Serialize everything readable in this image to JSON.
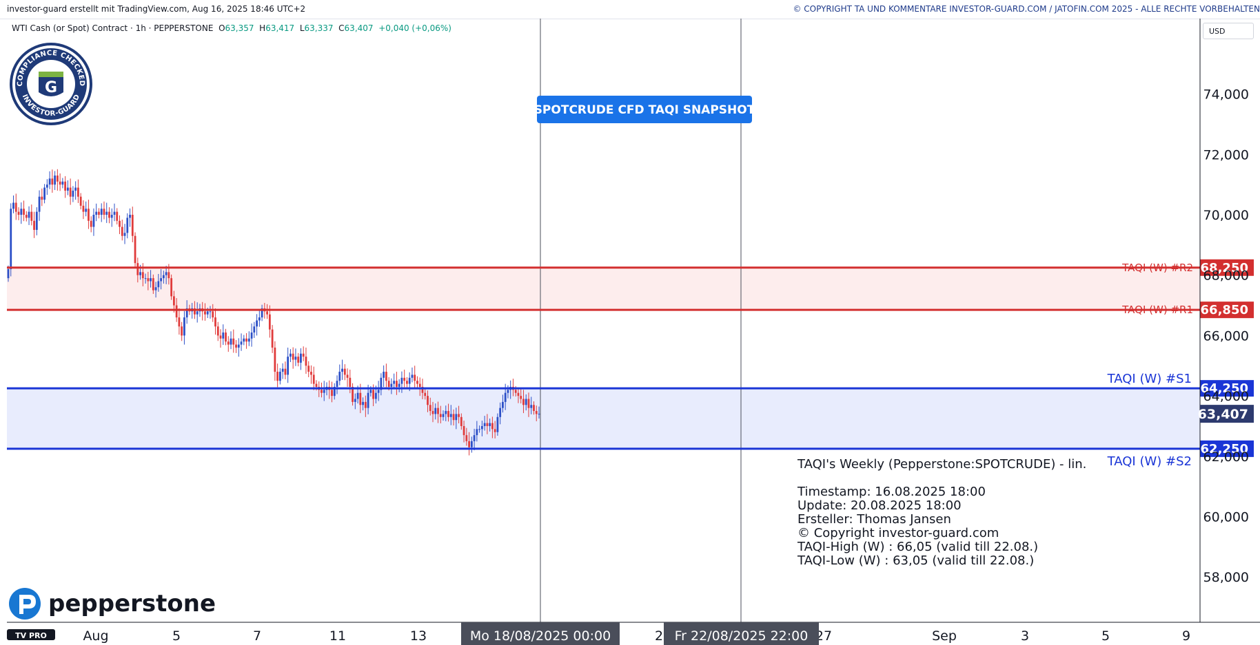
{
  "header": {
    "left_text": "investor-guard erstellt mit TradingView.com, Aug 16, 2025 18:46 UTC+2",
    "right_text": "© COPYRIGHT TA UND KOMMENTARE INVESTOR-GUARD.COM / JATOFIN.COM 2025 - ALLE RECHTE VORBEHALTEN"
  },
  "symbol": {
    "name": "WTI Cash (or Spot) Contract · 1h · PEPPERSTONE",
    "o_label": "O",
    "o_value": "63,357",
    "h_label": "H",
    "h_value": "63,417",
    "l_label": "L",
    "l_value": "63,337",
    "c_label": "C",
    "c_value": "63,407",
    "change": "+0,040 (+0,06%)"
  },
  "currency_button": "USD",
  "badge": {
    "top_text": "COMPLIANCE CHECKED",
    "bottom_text": "INVESTOR-GUARD",
    "letter": "G"
  },
  "snapshot_label": "SPOTCRUDE CFD TAQI SNAPSHOT",
  "info_box": {
    "title": "TAQI's Weekly (Pepperstone:SPOTCRUDE) - lin.",
    "lines": [
      "Timestamp: 16.08.2025 18:00",
      "Update: 20.08.2025 18:00",
      "Ersteller: Thomas Jansen",
      "© Copyright investor-guard.com",
      "TAQI-High (W) : 66,05 (valid till 22.08.)",
      "TAQI-Low (W) : 63,05 (valid till 22.08.)"
    ]
  },
  "logos": {
    "pepperstone": "pepperstone",
    "tradingview": "TV PRO"
  },
  "colors": {
    "resistance": "#d32f2f",
    "support": "#1a35d6",
    "bull": "#2b4fc7",
    "bear": "#e03b3b",
    "last": "#2d3a6e"
  },
  "chart_data": {
    "type": "candlestick",
    "timeframe": "1h",
    "ylim": [
      56.5,
      76.5
    ],
    "y_ticks": [
      "58,000",
      "60,000",
      "62,000",
      "64,000",
      "66,000",
      "68,000",
      "70,000",
      "72,000",
      "74,000"
    ],
    "y_tick_values": [
      58,
      60,
      62,
      64,
      66,
      68,
      70,
      72,
      74
    ],
    "x_ticks": [
      "Aug",
      "5",
      "7",
      "11",
      "13",
      "2",
      "27",
      "Sep",
      "3",
      "5",
      "9"
    ],
    "x_cursor_labels": [
      "Mo 18/08/2025   00:00",
      "Fr 22/08/2025   22:00"
    ],
    "levels": [
      {
        "name": "TAQI (W) #R2",
        "value": 68.25,
        "label": "68,250",
        "kind": "resistance"
      },
      {
        "name": "TAQI (W) #R1",
        "value": 66.85,
        "label": "66,850",
        "kind": "resistance"
      },
      {
        "name": "TAQI (W) #S1",
        "value": 64.25,
        "label": "64,250",
        "kind": "support"
      },
      {
        "name": "TAQI (W) #S2",
        "value": 62.25,
        "label": "62,250",
        "kind": "support"
      }
    ],
    "last_price": {
      "value": 63.407,
      "label": "63,407"
    },
    "series_close": [
      68.2,
      70.2,
      70.4,
      70.1,
      70.0,
      70.2,
      70.0,
      69.9,
      70.1,
      69.8,
      69.5,
      70.1,
      70.6,
      70.5,
      70.9,
      71.0,
      71.2,
      71.0,
      71.3,
      71.1,
      71.0,
      71.1,
      70.8,
      70.9,
      70.6,
      70.8,
      70.9,
      70.6,
      70.3,
      70.1,
      70.2,
      69.8,
      69.6,
      70.0,
      70.1,
      70.0,
      70.2,
      70.0,
      70.1,
      69.9,
      70.0,
      70.1,
      69.8,
      69.6,
      69.3,
      69.4,
      69.9,
      70.0,
      69.3,
      68.4,
      68.0,
      68.1,
      67.9,
      67.9,
      67.8,
      67.9,
      67.5,
      67.6,
      67.8,
      67.9,
      68.0,
      68.1,
      67.9,
      67.3,
      67.0,
      66.6,
      66.3,
      66.0,
      66.6,
      66.9,
      66.8,
      66.9,
      66.7,
      66.8,
      66.9,
      66.8,
      66.7,
      66.8,
      66.8,
      66.6,
      66.3,
      66.0,
      65.9,
      66.1,
      65.8,
      65.7,
      65.9,
      65.7,
      65.6,
      65.7,
      65.8,
      65.9,
      65.8,
      65.9,
      66.1,
      66.3,
      66.5,
      66.6,
      66.9,
      66.8,
      66.7,
      66.2,
      65.6,
      64.8,
      64.5,
      64.8,
      64.9,
      64.7,
      65.3,
      65.4,
      65.2,
      65.3,
      65.1,
      65.4,
      65.3,
      65.0,
      64.8,
      64.7,
      64.4,
      64.3,
      64.2,
      64.1,
      64.2,
      64.3,
      64.2,
      64.0,
      64.3,
      64.5,
      64.8,
      64.9,
      64.7,
      64.6,
      64.3,
      63.8,
      63.9,
      64.1,
      63.7,
      63.8,
      63.6,
      64.1,
      64.2,
      63.9,
      64.1,
      64.2,
      64.6,
      64.8,
      64.5,
      64.3,
      64.4,
      64.5,
      64.3,
      64.4,
      64.6,
      64.5,
      64.4,
      64.6,
      64.7,
      64.5,
      64.4,
      64.3,
      64.1,
      64.0,
      63.7,
      63.5,
      63.4,
      63.6,
      63.4,
      63.3,
      63.4,
      63.5,
      63.3,
      63.4,
      63.2,
      63.4,
      63.3,
      63.0,
      62.7,
      62.5,
      62.3,
      62.5,
      62.7,
      62.9,
      62.9,
      63.0,
      63.1,
      63.0,
      63.1,
      62.9,
      62.8,
      63.3,
      63.6,
      63.8,
      64.1,
      64.2,
      64.3,
      64.2,
      64.1,
      64.0,
      63.9,
      63.7,
      63.9,
      63.6,
      63.7,
      63.5,
      63.4,
      63.407
    ]
  }
}
